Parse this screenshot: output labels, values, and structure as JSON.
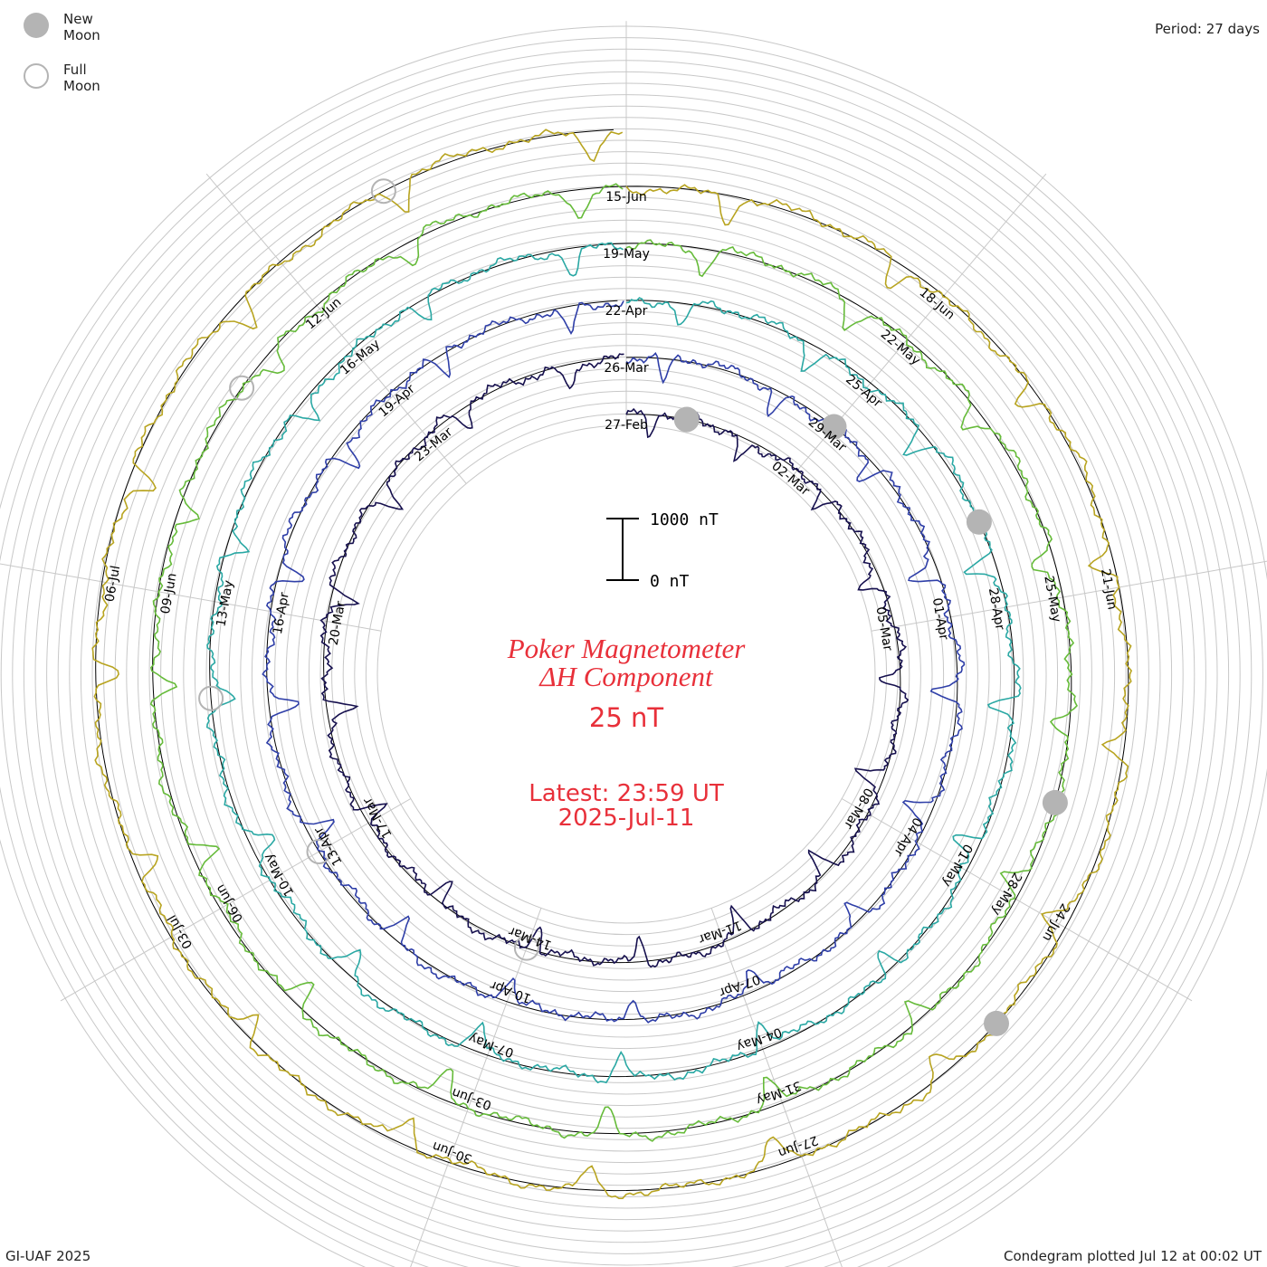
{
  "legend": {
    "new_moon": "New Moon",
    "full_moon": "Full Moon"
  },
  "period_label": "Period: 27 days",
  "footer_left": "GI-UAF 2025",
  "footer_right": "Condegram plotted Jul 12 at 00:02 UT",
  "colors": {
    "title": "#e8303a",
    "moon_fill": "#b4b4b4",
    "grid": "#c8c8c8",
    "baseline": "#000000"
  },
  "chart_data": {
    "type": "line",
    "title": "Poker Magnetometer",
    "subtitle": "ΔH Component",
    "units": "25 nT",
    "latest_line1": "Latest: 23:59 UT",
    "latest_line2": "2025-Jul-11",
    "scale_bar": {
      "top_label": "1000 nT",
      "bottom_label": "0 nT",
      "top_value": 1000,
      "bottom_value": 0
    },
    "period_days": 27,
    "start_date": "2025-02-27",
    "end_date": "2025-07-11",
    "rotations": [
      {
        "color": "#16104e",
        "date_labels": [
          "27-Feb",
          "02-Mar",
          "05-Mar",
          "08-Mar",
          "11-Mar",
          "14-Mar",
          "17-Mar",
          "20-Mar",
          "23-Mar"
        ]
      },
      {
        "color": "#2f3fa8",
        "date_labels": [
          "26-Mar",
          "29-Mar",
          "01-Apr",
          "04-Apr",
          "07-Apr",
          "10-Apr",
          "13-Apr",
          "16-Apr",
          "19-Apr"
        ]
      },
      {
        "color": "#2aa8a4",
        "date_labels": [
          "22-Apr",
          "25-Apr",
          "28-Apr",
          "01-May",
          "04-May",
          "07-May",
          "10-May",
          "13-May",
          "16-May"
        ]
      },
      {
        "color": "#66bb3a",
        "date_labels": [
          "19-May",
          "22-May",
          "25-May",
          "28-May",
          "31-May",
          "03-Jun",
          "06-Jun",
          "09-Jun",
          "12-Jun"
        ]
      },
      {
        "color": "#b8a420",
        "date_labels": [
          "15-Jun",
          "18-Jun",
          "21-Jun",
          "24-Jun",
          "27-Jun",
          "30-Jun",
          "03-Jul",
          "06-Jul"
        ]
      },
      {
        "color": "#c41e12",
        "date_labels": []
      }
    ],
    "new_moon_dates": [
      "2025-02-28",
      "2025-03-29",
      "2025-04-27",
      "2025-05-27",
      "2025-06-25"
    ],
    "full_moon_dates": [
      "2025-03-14",
      "2025-04-13",
      "2025-05-12",
      "2025-06-11",
      "2025-07-10"
    ],
    "grid": true
  }
}
